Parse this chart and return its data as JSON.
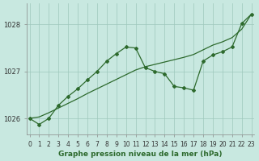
{
  "title": "Graphe pression niveau de la mer (hPa)",
  "background_color": "#c8e8e0",
  "line_color": "#2d6a2d",
  "x_values": [
    0,
    1,
    2,
    3,
    4,
    5,
    6,
    7,
    8,
    9,
    10,
    11,
    12,
    13,
    14,
    15,
    16,
    17,
    18,
    19,
    20,
    21,
    22,
    23
  ],
  "y_jagged": [
    1026.0,
    1025.87,
    1026.0,
    1026.28,
    1026.47,
    1026.63,
    1026.82,
    1027.0,
    1027.22,
    1027.38,
    1027.52,
    1027.5,
    1027.08,
    1027.0,
    1026.95,
    1026.68,
    1026.65,
    1026.6,
    1027.22,
    1027.35,
    1027.42,
    1027.52,
    1028.02,
    1028.22
  ],
  "y_trend": [
    1026.0,
    1026.03,
    1026.12,
    1026.22,
    1026.32,
    1026.42,
    1026.53,
    1026.63,
    1026.73,
    1026.83,
    1026.93,
    1027.03,
    1027.1,
    1027.15,
    1027.2,
    1027.25,
    1027.3,
    1027.36,
    1027.46,
    1027.56,
    1027.63,
    1027.72,
    1027.9,
    1028.22
  ],
  "ylim": [
    1025.65,
    1028.45
  ],
  "yticks": [
    1026,
    1027,
    1028
  ],
  "xlim": [
    -0.3,
    23.3
  ],
  "grid_color": "#9ec8bc",
  "tick_fontsize": 5.5,
  "ytick_fontsize": 6.0,
  "xlabel_fontsize": 6.5
}
